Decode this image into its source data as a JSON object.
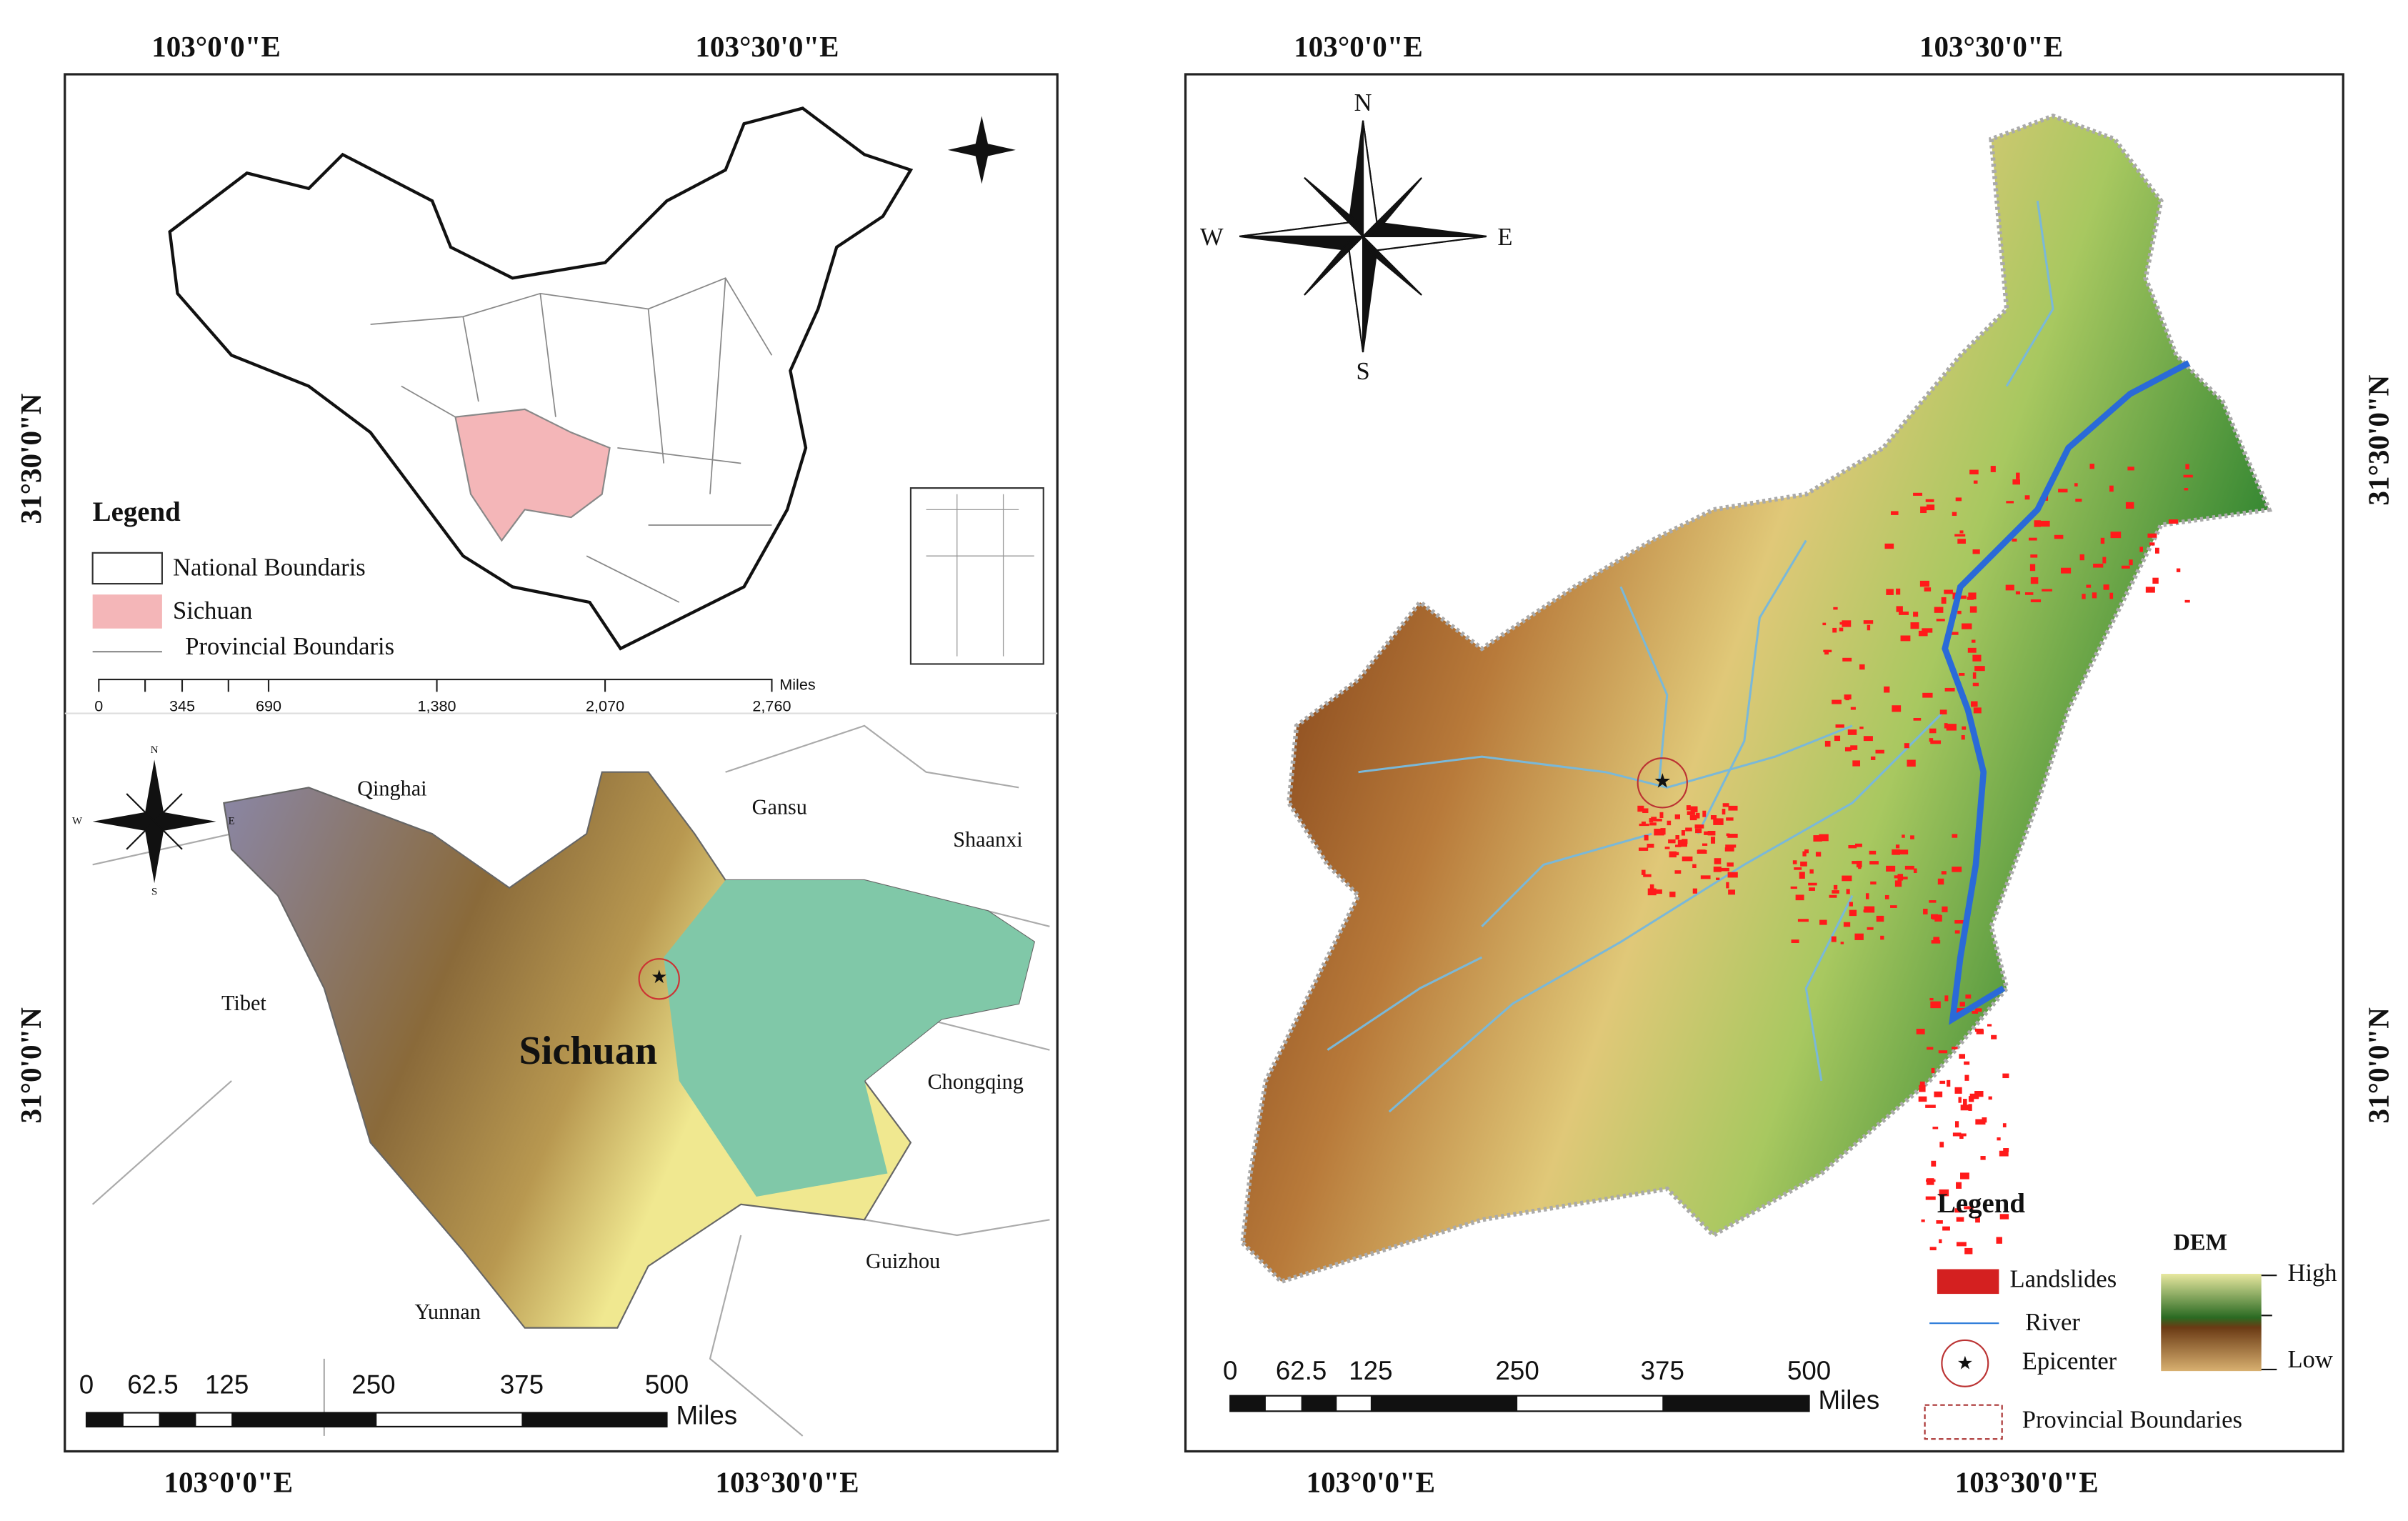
{
  "left_panel": {
    "top_coords": [
      "103°0'0\"E",
      "103°30'0\"E"
    ],
    "bottom_coords": [
      "103°0'0\"E",
      "103°30'0\"E"
    ],
    "side_coords": [
      "31°30'0\"N",
      "31°0'0\"N"
    ],
    "legend": {
      "title": "Legend",
      "items": [
        "National Boundaris",
        "Sichuan",
        "Provincial Boundaris"
      ]
    },
    "china_scale": {
      "labels": [
        "0",
        "345",
        "690",
        "1,380",
        "2,070",
        "2,760"
      ],
      "unit": "Miles"
    },
    "provinces": [
      "Qinghai",
      "Gansu",
      "Shaanxi",
      "Tibet",
      "Sichuan",
      "Chongqing",
      "Guizhou",
      "Yunnan"
    ],
    "compass": [
      "N",
      "S",
      "W",
      "E"
    ],
    "sichuan_scale": {
      "labels": [
        "0",
        "62.5",
        "125",
        "250",
        "375",
        "500"
      ],
      "unit": "Miles"
    }
  },
  "right_panel": {
    "top_coords": [
      "103°0'0\"E",
      "103°30'0\"E"
    ],
    "bottom_coords": [
      "103°0'0\"E",
      "103°30'0\"E"
    ],
    "side_coords": [
      "31°30'0\"N",
      "31°0'0\"N"
    ],
    "compass": [
      "N",
      "W",
      "E",
      "S"
    ],
    "legend": {
      "title": "Legend",
      "items": [
        "Landslides",
        "River",
        "Epicenter",
        "Provincial Boundaries"
      ],
      "dem_title": "DEM",
      "dem_high": "High",
      "dem_low": "Low"
    },
    "scale": {
      "labels": [
        "0",
        "62.5",
        "125",
        "250",
        "375",
        "500"
      ],
      "unit": "Miles"
    }
  }
}
